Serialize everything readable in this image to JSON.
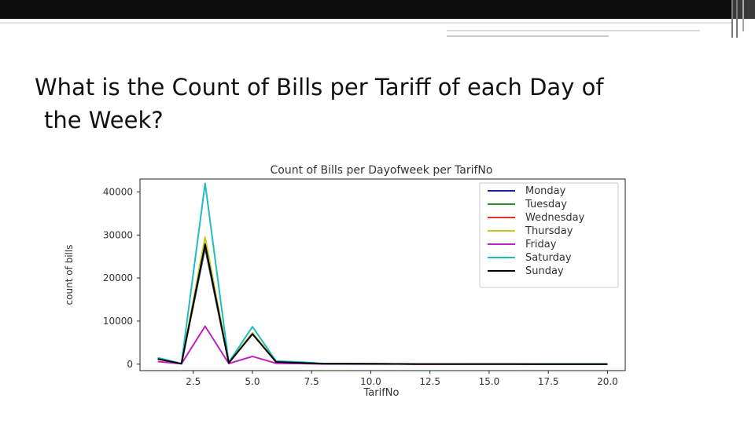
{
  "slide": {
    "title_line1": "What is the Count of Bills per Tariff of each Day of",
    "title_line2": "the Week?"
  },
  "chart_data": {
    "type": "line",
    "title": "Count of Bills per Dayofweek per TarifNo",
    "xlabel": "TarifNo",
    "ylabel": "count of bills",
    "xlim": [
      0.25,
      20.75
    ],
    "ylim": [
      -1500,
      43000
    ],
    "xticks": [
      2.5,
      5.0,
      7.5,
      10.0,
      12.5,
      15.0,
      17.5,
      20.0
    ],
    "xtick_labels": [
      "2.5",
      "5.0",
      "7.5",
      "10.0",
      "12.5",
      "15.0",
      "17.5",
      "20.0"
    ],
    "yticks": [
      0,
      10000,
      20000,
      30000,
      40000
    ],
    "ytick_labels": [
      "0",
      "10000",
      "20000",
      "30000",
      "40000"
    ],
    "grid": false,
    "legend_position": "top-right",
    "x": [
      1,
      2,
      3,
      4,
      5,
      6,
      7,
      8,
      9,
      10,
      11,
      12,
      13,
      14,
      15,
      16,
      17,
      18,
      19,
      20
    ],
    "series": [
      {
        "name": "Monday",
        "color": "#1f1f9e",
        "values": [
          1200,
          100,
          27000,
          300,
          7000,
          500,
          300,
          100,
          80,
          60,
          50,
          40,
          40,
          30,
          30,
          30,
          20,
          20,
          20,
          20
        ]
      },
      {
        "name": "Tuesday",
        "color": "#2e8b2e",
        "values": [
          1250,
          100,
          27500,
          300,
          7100,
          500,
          320,
          100,
          80,
          60,
          50,
          40,
          40,
          30,
          30,
          30,
          20,
          20,
          20,
          20
        ]
      },
      {
        "name": "Wednesday",
        "color": "#e8331c",
        "values": [
          1250,
          100,
          28000,
          300,
          7200,
          520,
          330,
          100,
          80,
          60,
          50,
          40,
          40,
          30,
          30,
          30,
          20,
          20,
          20,
          20
        ]
      },
      {
        "name": "Thursday",
        "color": "#c8c81a",
        "values": [
          1300,
          100,
          29500,
          320,
          7300,
          540,
          340,
          100,
          80,
          60,
          50,
          40,
          40,
          30,
          30,
          30,
          20,
          20,
          20,
          20
        ]
      },
      {
        "name": "Friday",
        "color": "#c020c0",
        "values": [
          600,
          80,
          8800,
          150,
          1800,
          200,
          150,
          50,
          40,
          30,
          25,
          20,
          20,
          15,
          15,
          15,
          10,
          10,
          10,
          10
        ]
      },
      {
        "name": "Saturday",
        "color": "#1fbcc4",
        "values": [
          1500,
          120,
          42000,
          400,
          8700,
          700,
          500,
          150,
          100,
          80,
          60,
          50,
          50,
          40,
          40,
          40,
          30,
          30,
          30,
          30
        ]
      },
      {
        "name": "Sunday",
        "color": "#000000",
        "values": [
          1200,
          100,
          27800,
          300,
          7000,
          500,
          300,
          100,
          80,
          60,
          50,
          40,
          40,
          30,
          30,
          30,
          20,
          20,
          20,
          20
        ]
      }
    ]
  }
}
